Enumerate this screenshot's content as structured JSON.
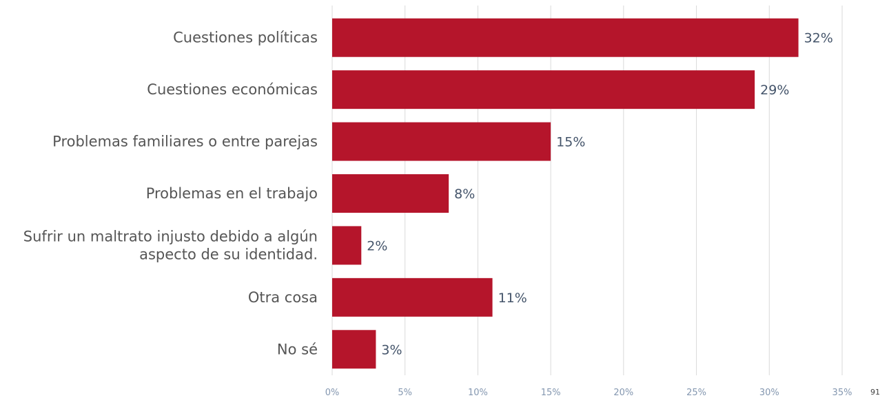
{
  "chart_data": {
    "type": "bar",
    "orientation": "horizontal",
    "categories": [
      [
        "Cuestiones políticas"
      ],
      [
        "Cuestiones económicas"
      ],
      [
        "Problemas familiares o entre parejas"
      ],
      [
        "Problemas en el trabajo"
      ],
      [
        "Sufrir un maltrato injusto debido a algún",
        "aspecto de su identidad."
      ],
      [
        "Otra cosa"
      ],
      [
        "No sé"
      ]
    ],
    "values": [
      32,
      29,
      15,
      8,
      2,
      11,
      3
    ],
    "value_labels": [
      "32%",
      "29%",
      "15%",
      "8%",
      "2%",
      "11%",
      "3%"
    ],
    "x_ticks": [
      0,
      5,
      10,
      15,
      20,
      25,
      30,
      35
    ],
    "x_tick_labels": [
      "0%",
      "5%",
      "10%",
      "15%",
      "20%",
      "25%",
      "30%",
      "35%"
    ],
    "xlim": [
      0,
      35
    ],
    "grid": true,
    "legend": "none",
    "colors": {
      "bar": "#b5152b",
      "grid": "#d9d9d9"
    }
  },
  "page_number": "91"
}
